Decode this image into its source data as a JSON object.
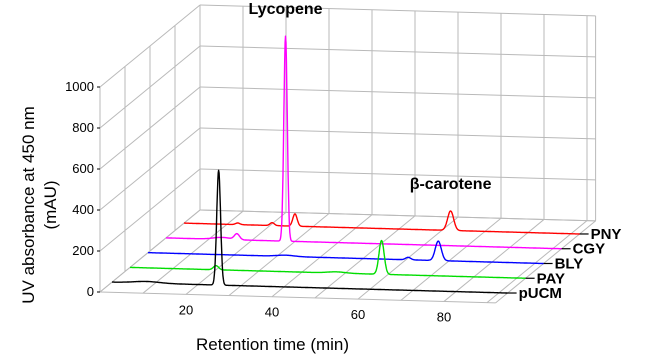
{
  "chart_data": {
    "type": "line",
    "title": "",
    "ylabel_line1": "UV absorbance at 450 nm",
    "ylabel_line2": "(mAU)",
    "xlabel": "Retention time (min)",
    "x_ticks": [
      20,
      40,
      60,
      80
    ],
    "xlim": [
      0,
      92
    ],
    "y_ticks": [
      0,
      200,
      400,
      600,
      800,
      1000
    ],
    "ylim": [
      0,
      1000
    ],
    "grid": true,
    "annotations": [
      {
        "text": "Lycopene",
        "series": "CGY",
        "x": 27.8
      },
      {
        "text": "β-carotene",
        "series": "PNY",
        "x": 62
      }
    ],
    "series": [
      {
        "name": "pUCM",
        "color": "#000000",
        "peaks": [
          [
            24.8,
            560,
            0.45
          ],
          [
            8,
            8,
            3
          ]
        ]
      },
      {
        "name": "PAY",
        "color": "#00dd00",
        "peaks": [
          [
            58.5,
            165,
            0.6
          ],
          [
            20,
            20,
            0.6
          ],
          [
            48,
            6,
            2
          ]
        ]
      },
      {
        "name": "BLY",
        "color": "#0000ff",
        "peaks": [
          [
            67.5,
            95,
            0.7
          ],
          [
            60.5,
            12,
            0.6
          ],
          [
            32,
            6,
            2
          ]
        ]
      },
      {
        "name": "CGY",
        "color": "#ff00ff",
        "peaks": [
          [
            27.8,
            1000,
            0.4
          ],
          [
            16.5,
            28,
            0.6
          ],
          [
            13,
            10,
            2
          ]
        ]
      },
      {
        "name": "PNY",
        "color": "#ff0000",
        "peaks": [
          [
            62,
            95,
            0.7
          ],
          [
            25.8,
            60,
            0.5
          ],
          [
            20.5,
            14,
            0.5
          ],
          [
            12.5,
            8,
            0.5
          ]
        ]
      }
    ]
  }
}
